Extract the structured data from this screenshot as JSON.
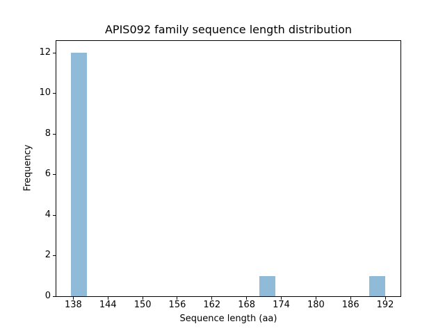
{
  "chart_data": {
    "type": "bar",
    "subtype": "histogram",
    "title": "APIS092 family sequence length distribution",
    "xlabel": "Sequence length (aa)",
    "ylabel": "Frequency",
    "x_ticks": [
      138,
      144,
      150,
      156,
      162,
      168,
      174,
      180,
      186,
      192
    ],
    "y_ticks": [
      0,
      2,
      4,
      6,
      8,
      10,
      12
    ],
    "xlim": [
      135.0,
      194.7
    ],
    "ylim": [
      0,
      12.6
    ],
    "grid": false,
    "legend": false,
    "background_color": "#ffffff",
    "bar_color": "#8fbbd9",
    "axis_color": "#000000",
    "bars": [
      {
        "bin_start": 137.7,
        "bin_end": 140.4,
        "count": 12
      },
      {
        "bin_start": 170.3,
        "bin_end": 173.0,
        "count": 1
      },
      {
        "bin_start": 189.3,
        "bin_end": 192.0,
        "count": 1
      }
    ]
  }
}
